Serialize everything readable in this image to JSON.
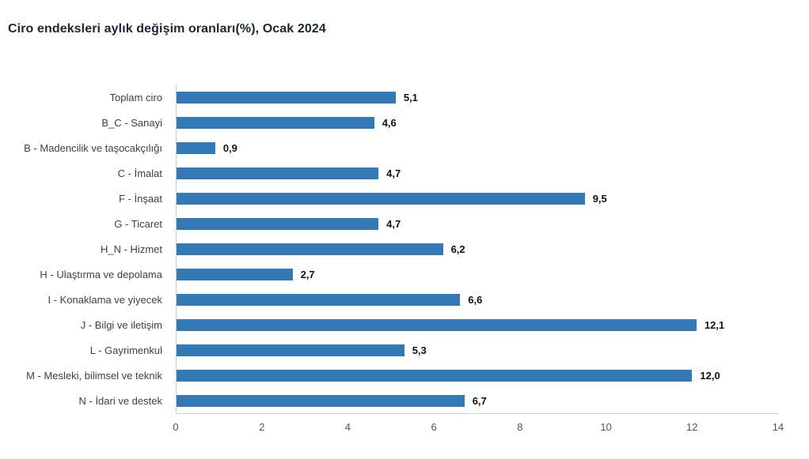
{
  "chart_data": {
    "type": "bar",
    "orientation": "horizontal",
    "title": "Ciro endeksleri aylık değişim oranları(%), Ocak 2024",
    "categories": [
      "Toplam ciro",
      "B_C - Sanayi",
      "B - Madencilik ve taşocakçılığı",
      "C - İmalat",
      "F - İnşaat",
      "G - Ticaret",
      "H_N - Hizmet",
      "H - Ulaştırma ve depolama",
      "I - Konaklama ve yiyecek",
      "J - Bilgi ve iletişim",
      "L - Gayrimenkul",
      "M - Mesleki, bilimsel ve teknik",
      "N - İdari ve destek"
    ],
    "values": [
      5.1,
      4.6,
      0.9,
      4.7,
      9.5,
      4.7,
      6.2,
      2.7,
      6.6,
      12.1,
      5.3,
      12.0,
      6.7
    ],
    "value_labels": [
      "5,1",
      "4,6",
      "0,9",
      "4,7",
      "9,5",
      "4,7",
      "6,2",
      "2,7",
      "6,6",
      "12,1",
      "5,3",
      "12,0",
      "6,7"
    ],
    "xlabel": "",
    "ylabel": "",
    "xlim": [
      0,
      14
    ],
    "xticks": [
      0,
      2,
      4,
      6,
      8,
      10,
      12,
      14
    ],
    "grid": false,
    "legend": false,
    "bar_color": "#3379b6",
    "axis_line_color": "#cccccc",
    "title_color": "#1b2733",
    "label_color": "#404040",
    "tick_color": "#555555",
    "value_label_color": "#111111"
  }
}
